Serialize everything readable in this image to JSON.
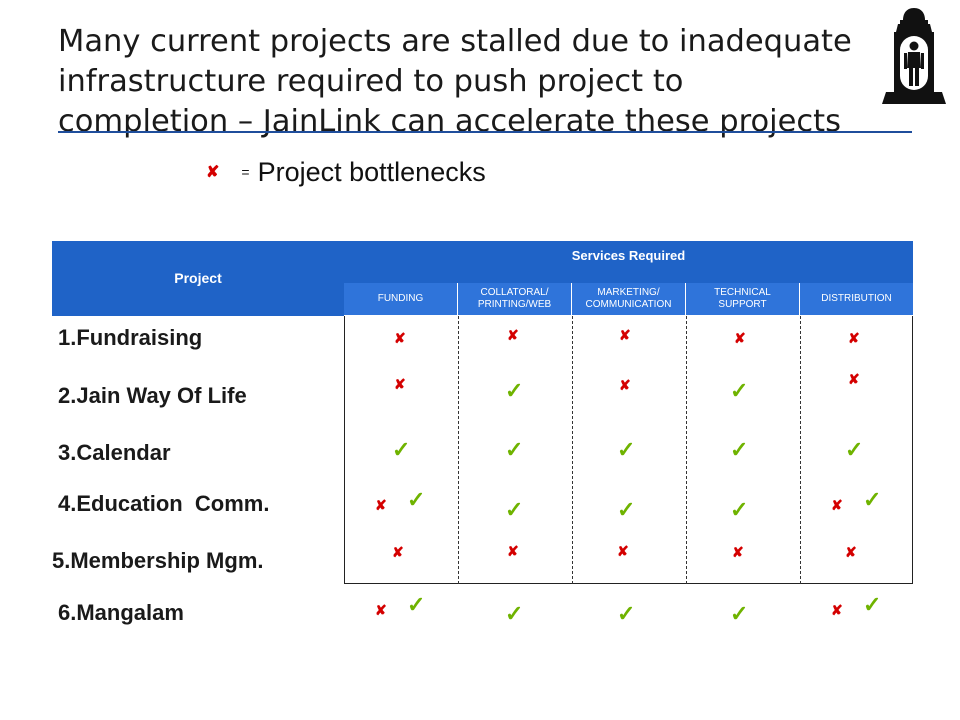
{
  "title": {
    "line1": "Many current projects are stalled due to inadequate",
    "line2": "infrastructure required to push project to",
    "line3": "completion – JainLink can accelerate these projects"
  },
  "legend": {
    "symbol": "✘",
    "equals": "=",
    "text": "Project bottlenecks"
  },
  "logo_icon": "temple-statue-icon",
  "colors": {
    "header": "#1f63c7",
    "subheader": "#2f74da",
    "bottleneck": "#d40000",
    "ok": "#6fb300",
    "rule": "#1f4e9c"
  },
  "table": {
    "project_header": "Project",
    "services_header": "Services Required",
    "columns": [
      "FUNDING",
      [
        "COLLATORAL/",
        "PRINTING/WEB"
      ],
      [
        "MARKETING/",
        "COMMUNICATION"
      ],
      [
        "TECHNICAL",
        "SUPPORT"
      ],
      "DISTRIBUTION"
    ],
    "rows": [
      {
        "num": "1.",
        "name": "Fundraising",
        "cells": [
          "x",
          "x",
          "x",
          "x",
          "x"
        ]
      },
      {
        "num": "2.",
        "name": "Jain Way Of Life",
        "cells": [
          "x",
          "check",
          "x",
          "check",
          "x"
        ]
      },
      {
        "num": "3.",
        "name": "Calendar",
        "cells": [
          "check",
          "check",
          "check",
          "check",
          "check"
        ]
      },
      {
        "num": "4.",
        "name": "Education  Comm.",
        "cells": [
          "x check",
          "check",
          "check",
          "check",
          "x check"
        ]
      },
      {
        "num": "5.",
        "name": "Membership Mgm.",
        "cells": [
          "x",
          "x",
          "x",
          "x",
          "x"
        ]
      },
      {
        "num": "6.",
        "name": "Mangalam",
        "cells": [
          "x check",
          "check",
          "check",
          "check",
          "x check"
        ]
      }
    ]
  }
}
